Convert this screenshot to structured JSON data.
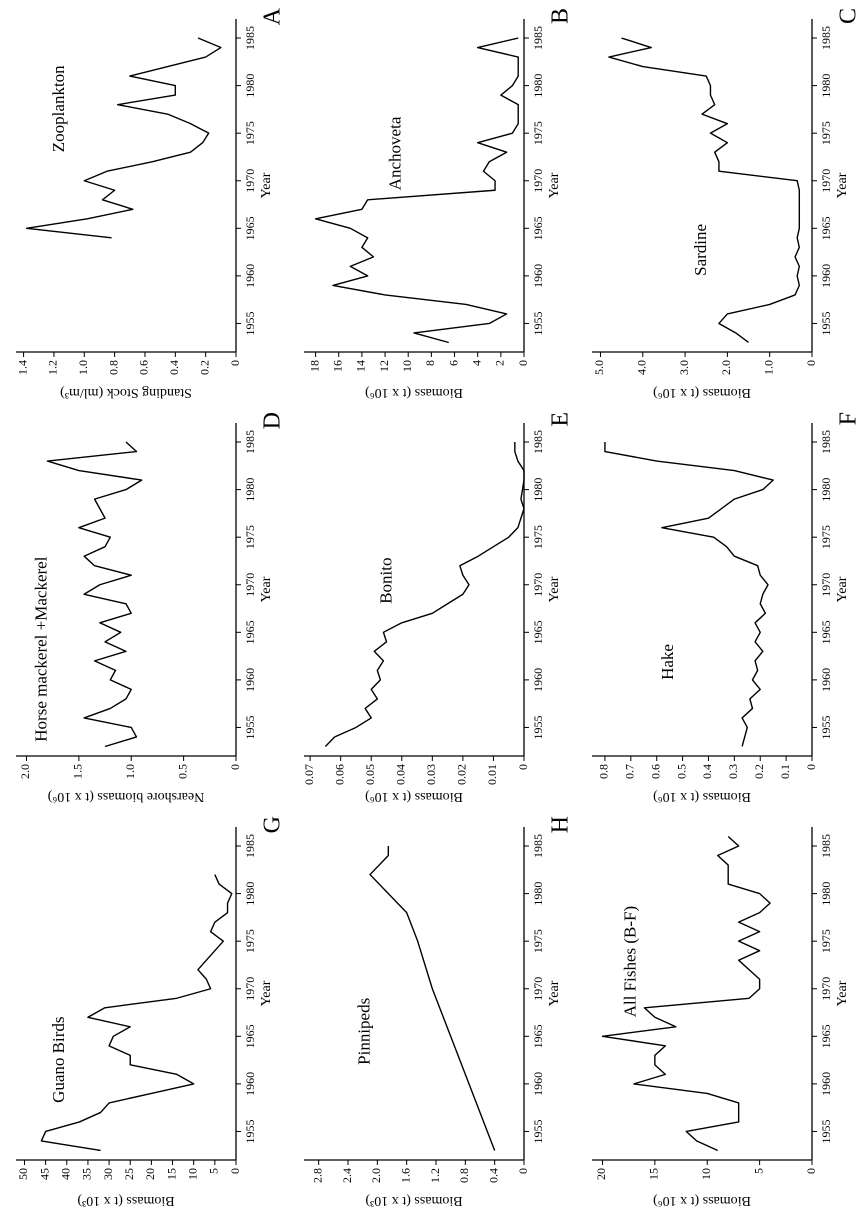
{
  "chart_data": [
    {
      "type": "line",
      "panel_label": "A",
      "annotation": "Zooplankton",
      "x_label": "Year",
      "y_label": "Standing Stock (ml/m³)",
      "color": "#000000",
      "x": [
        1964,
        1965,
        1966,
        1967,
        1968,
        1969,
        1970,
        1971,
        1972,
        1973,
        1974,
        1975,
        1976,
        1977,
        1978,
        1979,
        1980,
        1981,
        1982,
        1983,
        1984,
        1985
      ],
      "values": [
        0.82,
        1.38,
        0.98,
        0.68,
        0.88,
        0.8,
        1.0,
        0.85,
        0.55,
        0.3,
        0.22,
        0.18,
        0.3,
        0.45,
        0.78,
        0.4,
        0.4,
        0.7,
        0.45,
        0.2,
        0.1,
        0.25
      ],
      "xlim": [
        1952,
        1987
      ],
      "xticks": [
        1955,
        1960,
        1965,
        1970,
        1975,
        1980,
        1985
      ],
      "ylim": [
        0,
        1.45
      ],
      "yticks": [
        0,
        0.2,
        0.4,
        0.6,
        0.8,
        {
          "value": 1,
          "label": "1.0"
        },
        1.2,
        1.4
      ]
    },
    {
      "type": "line",
      "panel_label": "B",
      "annotation": "Anchoveta",
      "x_label": "Year",
      "y_label": "Biomass (t x 10⁶)",
      "color": "#000000",
      "x": [
        1953,
        1954,
        1955,
        1956,
        1957,
        1958,
        1959,
        1960,
        1961,
        1962,
        1963,
        1964,
        1965,
        1966,
        1967,
        1968,
        1969,
        1970,
        1971,
        1972,
        1973,
        1974,
        1975,
        1976,
        1977,
        1978,
        1979,
        1980,
        1981,
        1982,
        1983,
        1984,
        1985
      ],
      "values": [
        6.5,
        9.5,
        3,
        1.5,
        5,
        12,
        16.5,
        13.5,
        15,
        13,
        14,
        13.5,
        15,
        18,
        14,
        13.5,
        2.5,
        2.5,
        3.5,
        3,
        1.5,
        4,
        1,
        0.5,
        0.5,
        0.5,
        2,
        1,
        0.5,
        0.5,
        0.5,
        4,
        0.5
      ],
      "xlim": [
        1952,
        1987
      ],
      "xticks": [
        1955,
        1960,
        1965,
        1970,
        1975,
        1980,
        1985
      ],
      "ylim": [
        0,
        19
      ],
      "yticks": [
        0,
        2,
        4,
        6,
        8,
        10,
        12,
        14,
        16,
        18
      ]
    },
    {
      "type": "line",
      "panel_label": "C",
      "annotation": "Sardine",
      "x_label": "Year",
      "y_label": "Biomass (t x 10⁶)",
      "color": "#000000",
      "x": [
        1953,
        1954,
        1955,
        1956,
        1957,
        1958,
        1959,
        1960,
        1961,
        1962,
        1963,
        1964,
        1965,
        1966,
        1967,
        1968,
        1969,
        1970,
        1971,
        1972,
        1973,
        1974,
        1975,
        1976,
        1977,
        1978,
        1979,
        1980,
        1981,
        1982,
        1983,
        1984,
        1985
      ],
      "values": [
        1.5,
        1.8,
        2.2,
        2.0,
        1.0,
        0.4,
        0.3,
        0.35,
        0.3,
        0.4,
        0.3,
        0.35,
        0.3,
        0.3,
        0.3,
        0.3,
        0.3,
        0.35,
        2.2,
        2.2,
        2.3,
        2.0,
        2.4,
        2.0,
        2.6,
        2.3,
        2.4,
        2.4,
        2.5,
        4.0,
        4.8,
        3.8,
        4.5
      ],
      "xlim": [
        1952,
        1987
      ],
      "xticks": [
        1955,
        1960,
        1965,
        1970,
        1975,
        1980,
        1985
      ],
      "ylim": [
        0,
        5.2
      ],
      "yticks": [
        0,
        {
          "value": 1,
          "label": "1.0"
        },
        {
          "value": 2,
          "label": "2.0"
        },
        {
          "value": 3,
          "label": "3.0"
        },
        {
          "value": 4,
          "label": "4.0"
        },
        {
          "value": 5,
          "label": "5.0"
        }
      ]
    },
    {
      "type": "line",
      "panel_label": "D",
      "annotation": "Horse mackerel +Mackerel",
      "x_label": "Year",
      "y_label": "Nearshore biomass (t x 10⁶)",
      "color": "#000000",
      "x": [
        1953,
        1954,
        1955,
        1956,
        1957,
        1958,
        1959,
        1960,
        1961,
        1962,
        1963,
        1964,
        1965,
        1966,
        1967,
        1968,
        1969,
        1970,
        1971,
        1972,
        1973,
        1974,
        1975,
        1976,
        1977,
        1978,
        1979,
        1980,
        1981,
        1982,
        1983,
        1984,
        1985
      ],
      "values": [
        1.25,
        0.95,
        1.0,
        1.45,
        1.2,
        1.05,
        1.0,
        1.2,
        1.15,
        1.35,
        1.05,
        1.25,
        1.1,
        1.3,
        1.0,
        1.05,
        1.45,
        1.3,
        1.0,
        1.35,
        1.45,
        1.25,
        1.2,
        1.5,
        1.25,
        1.3,
        1.35,
        1.05,
        0.9,
        1.5,
        1.8,
        0.95,
        1.05
      ],
      "xlim": [
        1952,
        1987
      ],
      "xticks": [
        1955,
        1960,
        1965,
        1970,
        1975,
        1980,
        1985
      ],
      "ylim": [
        0,
        2.1
      ],
      "yticks": [
        0,
        0.5,
        {
          "value": 1,
          "label": "1.0"
        },
        1.5,
        {
          "value": 2,
          "label": "2.0"
        }
      ]
    },
    {
      "type": "line",
      "panel_label": "E",
      "annotation": "Bonito",
      "x_label": "Year",
      "y_label": "Biomass (t x 10⁶)",
      "color": "#000000",
      "x": [
        1953,
        1954,
        1955,
        1956,
        1957,
        1958,
        1959,
        1960,
        1961,
        1962,
        1963,
        1964,
        1965,
        1966,
        1967,
        1968,
        1969,
        1970,
        1971,
        1972,
        1973,
        1974,
        1975,
        1976,
        1977,
        1978,
        1979,
        1980,
        1981,
        1982,
        1983,
        1984,
        1985
      ],
      "values": [
        0.065,
        0.062,
        0.055,
        0.05,
        0.052,
        0.048,
        0.05,
        0.047,
        0.048,
        0.046,
        0.049,
        0.045,
        0.046,
        0.04,
        0.03,
        0.025,
        0.02,
        0.018,
        0.02,
        0.021,
        0.015,
        0.01,
        0.005,
        0.002,
        0.001,
        0,
        0.001,
        0.0005,
        0,
        0,
        0.002,
        0.003,
        0.003
      ],
      "xlim": [
        1952,
        1987
      ],
      "xticks": [
        1955,
        1960,
        1965,
        1970,
        1975,
        1980,
        1985
      ],
      "ylim": [
        0,
        0.072
      ],
      "yticks": [
        0,
        0.01,
        0.02,
        0.03,
        0.04,
        0.05,
        0.06,
        0.07
      ]
    },
    {
      "type": "line",
      "panel_label": "F",
      "annotation": "Hake",
      "x_label": "Year",
      "y_label": "Biomass (t x 10⁶)",
      "color": "#000000",
      "x": [
        1953,
        1954,
        1955,
        1956,
        1957,
        1958,
        1959,
        1960,
        1961,
        1962,
        1963,
        1964,
        1965,
        1966,
        1967,
        1968,
        1969,
        1970,
        1971,
        1972,
        1973,
        1974,
        1975,
        1976,
        1977,
        1978,
        1979,
        1980,
        1981,
        1982,
        1983,
        1984,
        1985
      ],
      "values": [
        0.27,
        0.26,
        0.25,
        0.27,
        0.23,
        0.24,
        0.2,
        0.23,
        0.21,
        0.22,
        0.19,
        0.22,
        0.2,
        0.22,
        0.18,
        0.2,
        0.19,
        0.17,
        0.2,
        0.21,
        0.3,
        0.33,
        0.38,
        0.58,
        0.4,
        0.35,
        0.3,
        0.19,
        0.15,
        0.3,
        0.6,
        0.8,
        0.8
      ],
      "xlim": [
        1952,
        1987
      ],
      "xticks": [
        1955,
        1960,
        1965,
        1970,
        1975,
        1980,
        1985
      ],
      "ylim": [
        0,
        0.85
      ],
      "yticks": [
        0,
        0.1,
        0.2,
        0.3,
        0.4,
        0.5,
        0.6,
        0.7,
        0.8
      ]
    },
    {
      "type": "line",
      "panel_label": "G",
      "annotation": "Guano Birds",
      "x_label": "Year",
      "y_label": "Biomass (t x 10³)",
      "color": "#000000",
      "x": [
        1953,
        1954,
        1955,
        1956,
        1957,
        1958,
        1959,
        1960,
        1961,
        1962,
        1963,
        1964,
        1965,
        1966,
        1967,
        1968,
        1969,
        1970,
        1971,
        1972,
        1973,
        1974,
        1975,
        1976,
        1977,
        1978,
        1979,
        1980,
        1981,
        1982
      ],
      "values": [
        32,
        46,
        45,
        37,
        32,
        30,
        20,
        10,
        14,
        25,
        25,
        30,
        29,
        25,
        35,
        31,
        14,
        6,
        7,
        9,
        7,
        5,
        3,
        6,
        5,
        2,
        2,
        1,
        4,
        5
      ],
      "xlim": [
        1952,
        1987
      ],
      "xticks": [
        1955,
        1960,
        1965,
        1970,
        1975,
        1980,
        1985
      ],
      "ylim": [
        0,
        52
      ],
      "yticks": [
        0,
        5,
        10,
        15,
        20,
        25,
        30,
        35,
        40,
        45,
        50
      ]
    },
    {
      "type": "line",
      "panel_label": "H",
      "annotation": "Pinnipeds",
      "x_label": "Year",
      "y_label": "Biomass (t x 10³)",
      "color": "#000000",
      "x": [
        1953,
        1955,
        1960,
        1965,
        1970,
        1975,
        1978,
        1982,
        1984,
        1985
      ],
      "values": [
        0.4,
        0.5,
        0.75,
        1.0,
        1.25,
        1.45,
        1.6,
        2.1,
        1.85,
        1.85
      ],
      "xlim": [
        1952,
        1987
      ],
      "xticks": [
        1955,
        1960,
        1965,
        1970,
        1975,
        1980,
        1985
      ],
      "ylim": [
        0,
        3.0
      ],
      "yticks": [
        0,
        0.4,
        0.8,
        1.2,
        1.6,
        {
          "value": 2,
          "label": "2.0"
        },
        2.4,
        2.8
      ]
    },
    {
      "type": "line",
      "annotation": "All Fishes (B-F)",
      "x_label": "Year",
      "y_label": "Biomass (t x 10⁶)",
      "color": "#000000",
      "x": [
        1953,
        1954,
        1955,
        1956,
        1957,
        1958,
        1959,
        1960,
        1961,
        1962,
        1963,
        1964,
        1965,
        1966,
        1967,
        1968,
        1969,
        1970,
        1971,
        1972,
        1973,
        1974,
        1975,
        1976,
        1977,
        1978,
        1979,
        1980,
        1981,
        1982,
        1983,
        1984,
        1985,
        1986
      ],
      "values": [
        9,
        11,
        12,
        7,
        7,
        7,
        10,
        17,
        14,
        15,
        15,
        14,
        20,
        13,
        15,
        16,
        6,
        5,
        5,
        6,
        7,
        5,
        7,
        5,
        7,
        5,
        4,
        5,
        8,
        8,
        8,
        9,
        7,
        8
      ],
      "xlim": [
        1952,
        1987
      ],
      "xticks": [
        1955,
        1960,
        1965,
        1970,
        1975,
        1980,
        1985
      ],
      "ylim": [
        0,
        21
      ],
      "yticks": [
        0,
        5,
        10,
        15,
        20
      ]
    }
  ]
}
